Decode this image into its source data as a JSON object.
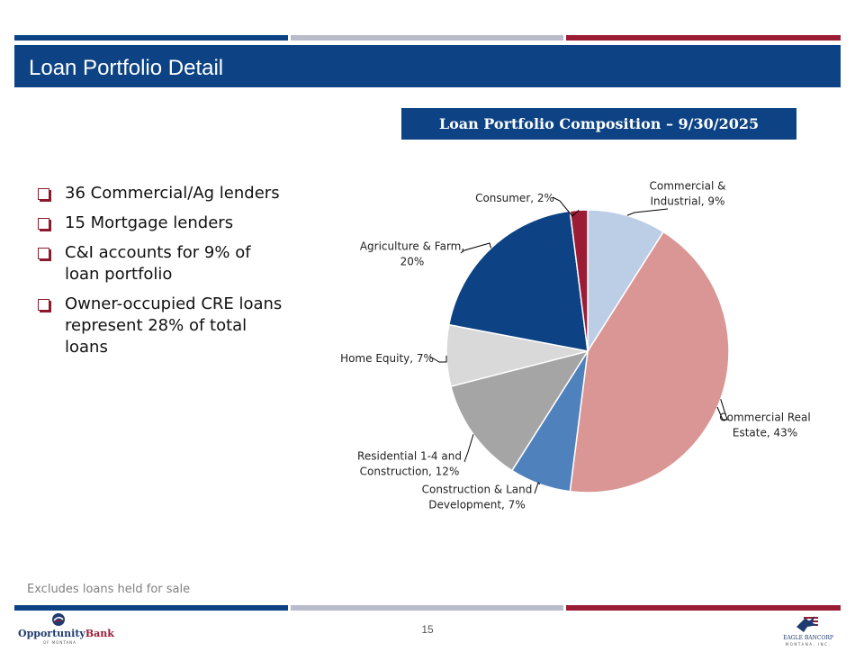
{
  "colors": {
    "navy": "#0d4384",
    "gray_stripe": "#b9bccb",
    "maroon": "#9b1c35",
    "bullet": "#8b1a2b"
  },
  "header": {
    "title": "Loan Portfolio Detail"
  },
  "chart_box": {
    "title": "Loan Portfolio Composition – 9/30/2025"
  },
  "bullets": [
    {
      "lines": [
        "36 Commercial/Ag lenders"
      ]
    },
    {
      "lines": [
        "15 Mortgage lenders"
      ]
    },
    {
      "lines": [
        "C&I accounts for 9% of",
        "loan portfolio"
      ]
    },
    {
      "lines": [
        "Owner-occupied CRE loans",
        "represent 28% of total",
        "loans"
      ]
    }
  ],
  "chart_data": {
    "type": "pie",
    "title": "Loan Portfolio Composition – 9/30/2025",
    "start": "12 o'clock",
    "direction": "clockwise",
    "slices": [
      {
        "name": "Commercial & Industrial",
        "value": 9,
        "color": "#bccde6",
        "label_lines": [
          "Commercial &",
          "Industrial, 9%"
        ]
      },
      {
        "name": "Commercial Real Estate",
        "value": 43,
        "color": "#da9694",
        "label_lines": [
          "Commercial Real",
          "Estate, 43%"
        ]
      },
      {
        "name": "Construction & Land Development",
        "value": 7,
        "color": "#4f81bd",
        "label_lines": [
          "Construction & Land",
          "Development, 7%"
        ]
      },
      {
        "name": "Residential 1-4 and Construction",
        "value": 12,
        "color": "#a5a5a5",
        "label_lines": [
          "Residential 1-4 and",
          "Construction, 12%"
        ]
      },
      {
        "name": "Home Equity",
        "value": 7,
        "color": "#d9d9d9",
        "label_lines": [
          "Home Equity, 7%"
        ]
      },
      {
        "name": "Agriculture & Farm",
        "value": 20,
        "color": "#0d4384",
        "label_lines": [
          "Agriculture & Farm,",
          "20%"
        ]
      },
      {
        "name": "Consumer",
        "value": 2,
        "color": "#9b1c35",
        "label_lines": [
          "Consumer, 2%"
        ]
      }
    ]
  },
  "footer": {
    "note": "Excludes loans held for sale",
    "page_number": "15",
    "left_logo": {
      "name": "OpportunityBank",
      "sub": "OF MONTANA"
    },
    "right_logo": {
      "name": "EAGLE BANCORP",
      "sub": "MONTANA, INC."
    }
  }
}
